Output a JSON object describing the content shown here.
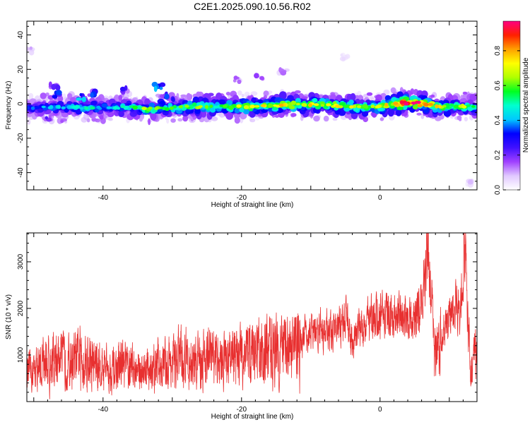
{
  "page": {
    "title": "C2E1.2025.090.10.56.R02"
  },
  "chart_data": [
    {
      "type": "heatmap",
      "xlabel": "Height of straight line (km)",
      "ylabel": "Frequency (Hz)",
      "xlim": [
        -51,
        14
      ],
      "ylim": [
        -50,
        48
      ],
      "xticks": [
        -40,
        -20,
        0
      ],
      "yticks": [
        -40,
        -20,
        0,
        20,
        40
      ],
      "grid": false,
      "colorbar": {
        "label": "Normalized spectral amplitude",
        "range": [
          0.0,
          0.97
        ],
        "ticks": [
          0.0,
          0.2,
          0.4,
          0.6,
          0.8
        ],
        "colors": [
          "#ffffff",
          "#e0c8ff",
          "#a040ff",
          "#4010ff",
          "#0000ff",
          "#00c8ff",
          "#00ffd0",
          "#00ff20",
          "#b0ff00",
          "#ffff00",
          "#ffa000",
          "#ff2000",
          "#ff0080"
        ]
      },
      "ridge": [
        {
          "x": -51,
          "f": -2.5,
          "a": 0.35
        },
        {
          "x": -48,
          "f": -2.0,
          "a": 0.4
        },
        {
          "x": -45,
          "f": -2.5,
          "a": 0.45
        },
        {
          "x": -42,
          "f": -2.0,
          "a": 0.48
        },
        {
          "x": -39,
          "f": -2.5,
          "a": 0.44
        },
        {
          "x": -36,
          "f": -2.0,
          "a": 0.5
        },
        {
          "x": -34,
          "f": -3.0,
          "a": 0.62
        },
        {
          "x": -31,
          "f": -2.5,
          "a": 0.55
        },
        {
          "x": -28,
          "f": -2.0,
          "a": 0.6
        },
        {
          "x": -25,
          "f": -1.5,
          "a": 0.63
        },
        {
          "x": -22,
          "f": -1.5,
          "a": 0.66
        },
        {
          "x": -19,
          "f": -2.0,
          "a": 0.7
        },
        {
          "x": -16,
          "f": -1.0,
          "a": 0.72
        },
        {
          "x": -13,
          "f": -0.5,
          "a": 0.74
        },
        {
          "x": -10,
          "f": -0.5,
          "a": 0.72
        },
        {
          "x": -7,
          "f": -1.0,
          "a": 0.7
        },
        {
          "x": -4,
          "f": -1.5,
          "a": 0.68
        },
        {
          "x": -1,
          "f": -2.0,
          "a": 0.62
        },
        {
          "x": 2,
          "f": 0.0,
          "a": 0.85
        },
        {
          "x": 4,
          "f": 0.5,
          "a": 0.96
        },
        {
          "x": 6,
          "f": 0.5,
          "a": 0.96
        },
        {
          "x": 8,
          "f": -1.5,
          "a": 0.75
        },
        {
          "x": 10,
          "f": -2.0,
          "a": 0.6
        },
        {
          "x": 12,
          "f": -1.5,
          "a": 0.65
        },
        {
          "x": 14,
          "f": -2.0,
          "a": 0.5
        }
      ],
      "scatter_blobs": [
        {
          "x": -47,
          "f": 10,
          "a": 0.25
        },
        {
          "x": -46.5,
          "f": 5,
          "a": 0.3
        },
        {
          "x": -43,
          "f": 4,
          "a": 0.35
        },
        {
          "x": -41,
          "f": 6,
          "a": 0.3
        },
        {
          "x": -37,
          "f": 8,
          "a": 0.25
        },
        {
          "x": -32,
          "f": 10,
          "a": 0.35
        },
        {
          "x": -31,
          "f": 5,
          "a": 0.3
        },
        {
          "x": -30,
          "f": 3,
          "a": 0.25
        },
        {
          "x": -25,
          "f": 4,
          "a": 0.2
        },
        {
          "x": -20.5,
          "f": 14,
          "a": 0.15
        },
        {
          "x": -17.5,
          "f": 15,
          "a": 0.15
        },
        {
          "x": -14,
          "f": 19,
          "a": 0.12
        },
        {
          "x": -50.5,
          "f": 31,
          "a": 0.1
        },
        {
          "x": -5,
          "f": 27,
          "a": 0.08
        },
        {
          "x": -48,
          "f": -9,
          "a": 0.2
        },
        {
          "x": -40,
          "f": -7,
          "a": 0.15
        },
        {
          "x": 13,
          "f": -46,
          "a": 0.08
        }
      ]
    },
    {
      "type": "line",
      "xlabel": "Height of straight line (km)",
      "ylabel": "SNR (10 * v/v)",
      "xlim": [
        -51,
        14
      ],
      "ylim": [
        0,
        3620
      ],
      "xticks": [
        -40,
        -20,
        0
      ],
      "yticks": [
        1000,
        2000,
        3000
      ],
      "grid": false,
      "color": "#e83030",
      "envelope": [
        {
          "x": -51,
          "y": 600
        },
        {
          "x": -49,
          "y": 750
        },
        {
          "x": -47,
          "y": 900
        },
        {
          "x": -45,
          "y": 850
        },
        {
          "x": -43,
          "y": 950
        },
        {
          "x": -41,
          "y": 800
        },
        {
          "x": -39,
          "y": 700
        },
        {
          "x": -37,
          "y": 750
        },
        {
          "x": -35,
          "y": 650
        },
        {
          "x": -33,
          "y": 700
        },
        {
          "x": -31,
          "y": 800
        },
        {
          "x": -29,
          "y": 950
        },
        {
          "x": -27,
          "y": 850
        },
        {
          "x": -25,
          "y": 1000
        },
        {
          "x": -23,
          "y": 900
        },
        {
          "x": -21,
          "y": 950
        },
        {
          "x": -19,
          "y": 1050
        },
        {
          "x": -17,
          "y": 1000
        },
        {
          "x": -15,
          "y": 1200
        },
        {
          "x": -13,
          "y": 1000
        },
        {
          "x": -11,
          "y": 1400
        },
        {
          "x": -9,
          "y": 1550
        },
        {
          "x": -7,
          "y": 1500
        },
        {
          "x": -5,
          "y": 1700
        },
        {
          "x": -4,
          "y": 1350
        },
        {
          "x": -3,
          "y": 1600
        },
        {
          "x": -1,
          "y": 1800
        },
        {
          "x": 1,
          "y": 1800
        },
        {
          "x": 3,
          "y": 1850
        },
        {
          "x": 5,
          "y": 1750
        },
        {
          "x": 6,
          "y": 2100
        },
        {
          "x": 7,
          "y": 3200
        },
        {
          "x": 8,
          "y": 900
        },
        {
          "x": 9,
          "y": 1400
        },
        {
          "x": 10,
          "y": 1800
        },
        {
          "x": 11,
          "y": 2200
        },
        {
          "x": 11.5,
          "y": 1600
        },
        {
          "x": 12.2,
          "y": 3500
        },
        {
          "x": 13,
          "y": 600
        },
        {
          "x": 14,
          "y": 1200
        }
      ]
    }
  ]
}
